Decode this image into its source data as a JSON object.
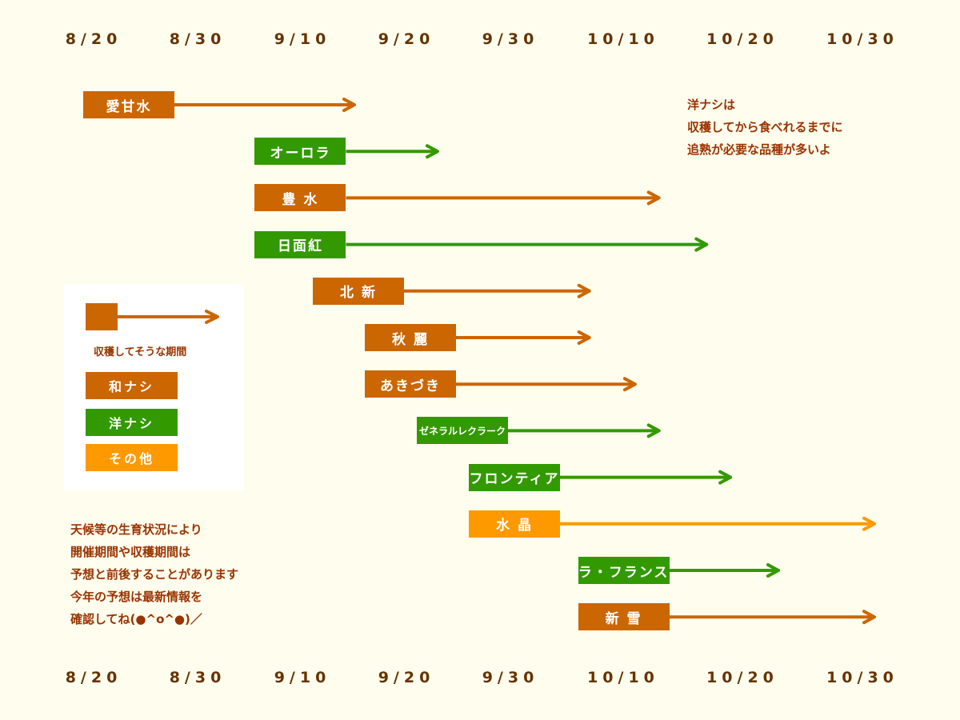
{
  "chart_data": {
    "type": "gantt",
    "x_ticks": [
      "8/20",
      "8/30",
      "9/10",
      "9/20",
      "9/30",
      "10/10",
      "10/20",
      "10/30"
    ],
    "colors": {
      "wa_nashi": "#cc6600",
      "you_nashi": "#339900",
      "sonota": "#ff9900"
    },
    "series": [
      {
        "name": "愛甘水",
        "category": "wa_nashi",
        "start": "8/19",
        "end": "9/15"
      },
      {
        "name": "オーロラ",
        "category": "you_nashi",
        "start": "9/5",
        "end": "9/23"
      },
      {
        "name": "豊 水",
        "category": "wa_nashi",
        "start": "9/5",
        "end": "10/13"
      },
      {
        "name": "日面紅",
        "category": "you_nashi",
        "start": "9/5",
        "end": "10/17"
      },
      {
        "name": "北 新",
        "category": "wa_nashi",
        "start": "9/11",
        "end": "10/7"
      },
      {
        "name": "秋 麗",
        "category": "wa_nashi",
        "start": "9/16",
        "end": "10/7"
      },
      {
        "name": "あきづき",
        "category": "wa_nashi",
        "start": "9/16",
        "end": "10/11"
      },
      {
        "name": "ゼネラルレクラーク",
        "category": "you_nashi",
        "start": "9/21",
        "end": "10/13"
      },
      {
        "name": "フロンティア",
        "category": "you_nashi",
        "start": "9/26",
        "end": "10/19"
      },
      {
        "name": "水 晶",
        "category": "sonota",
        "start": "9/26",
        "end": "10/31"
      },
      {
        "name": "ラ・フランス",
        "category": "you_nashi",
        "start": "10/6",
        "end": "10/23"
      },
      {
        "name": "新 雪",
        "category": "wa_nashi",
        "start": "10/6",
        "end": "10/31"
      }
    ],
    "legend": {
      "caption": "収穫してそうな期間",
      "items": [
        {
          "label": "和ナシ",
          "category": "wa_nashi"
        },
        {
          "label": "洋ナシ",
          "category": "you_nashi"
        },
        {
          "label": "その他",
          "category": "sonota"
        }
      ]
    },
    "annotations": {
      "top_right": "洋ナシは\n収穫してから食べれるまでに\n追熟が必要な品種が多いよ",
      "bottom_left": "天候等の生育状況により\n開催期間や収穫期間は\n予想と前後することがあります\n今年の予想は最新情報を\n確認してね(●^o^●)／"
    }
  }
}
